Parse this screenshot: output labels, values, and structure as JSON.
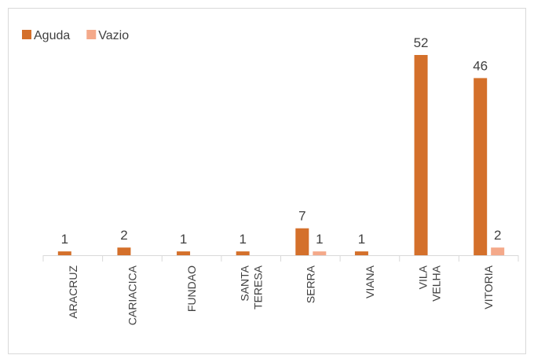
{
  "chart_data": {
    "type": "bar",
    "categories": [
      "ARACRUZ",
      "CARIACICA",
      "FUNDAO",
      "SANTA TERESA",
      "SERRA",
      "VIANA",
      "VILA VELHA",
      "VITORIA"
    ],
    "series": [
      {
        "name": "Aguda",
        "color": "#d4702b",
        "values": [
          1,
          2,
          1,
          1,
          7,
          1,
          52,
          46
        ]
      },
      {
        "name": "Vazio",
        "color": "#f4a98a",
        "values": [
          null,
          null,
          null,
          null,
          1,
          null,
          null,
          2
        ]
      }
    ],
    "legend": "top-left"
  }
}
